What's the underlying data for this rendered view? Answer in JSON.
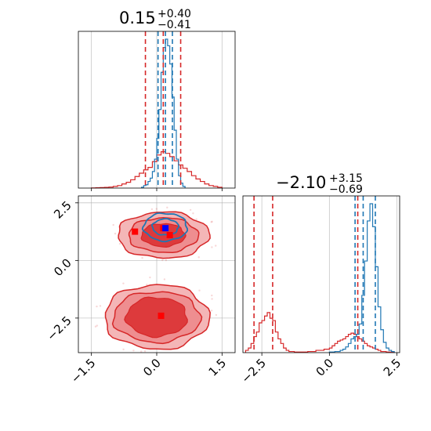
{
  "colors": {
    "red": "#d62728",
    "blue": "#1f77b4",
    "red_fill_light": "#f0a0a2",
    "red_fill_dark": "#d62728",
    "grid": "#b0b0b0"
  },
  "chart_data": [
    {
      "type": "histogram",
      "panel": "top-left",
      "title": {
        "value": "0.15",
        "plus": "+0.40",
        "minus": "−0.41"
      },
      "xlim": [
        -1.8,
        1.8
      ],
      "xticks": [
        -1.5,
        0.0,
        1.5
      ],
      "grid": true,
      "series": [
        {
          "color": "#d62728",
          "quantiles": [
            -0.26,
            0.15,
            0.55
          ],
          "bins": [
            -1.5,
            -1.4,
            -1.3,
            -1.2,
            -1.1,
            -1.0,
            -0.9,
            -0.8,
            -0.7,
            -0.6,
            -0.5,
            -0.4,
            -0.3,
            -0.2,
            -0.1,
            0.0,
            0.1,
            0.2,
            0.3,
            0.4,
            0.5,
            0.6,
            0.7,
            0.8,
            0.9,
            1.0,
            1.1,
            1.2,
            1.3,
            1.4
          ],
          "counts": [
            0.2,
            0.4,
            0.6,
            0.8,
            1.2,
            2,
            3,
            5,
            7,
            10,
            14,
            18,
            22,
            25,
            32,
            40,
            44,
            42,
            38,
            33,
            28,
            24,
            20,
            15,
            11,
            8,
            5,
            3,
            2,
            1
          ]
        },
        {
          "color": "#1f77b4",
          "quantiles": [
            0.03,
            0.2,
            0.36
          ],
          "bins": [
            -0.35,
            -0.3,
            -0.25,
            -0.2,
            -0.15,
            -0.1,
            -0.05,
            0.0,
            0.05,
            0.1,
            0.15,
            0.2,
            0.25,
            0.3,
            0.35,
            0.4,
            0.45,
            0.5,
            0.55,
            0.6
          ],
          "counts": [
            1,
            3,
            4,
            8,
            12,
            20,
            35,
            60,
            95,
            140,
            170,
            180,
            172,
            150,
            110,
            70,
            35,
            15,
            6,
            2
          ]
        }
      ]
    },
    {
      "type": "histogram",
      "panel": "bottom-right",
      "title": {
        "value": "−2.10",
        "plus": "+3.15",
        "minus": "−0.69"
      },
      "xlim": [
        -3.2,
        2.6
      ],
      "xticks": [
        -2.5,
        0.0,
        2.5
      ],
      "grid": true,
      "series": [
        {
          "color": "#d62728",
          "quantiles": [
            -2.79,
            -2.1,
            1.05
          ],
          "bins": [
            -3.1,
            -3.0,
            -2.9,
            -2.8,
            -2.7,
            -2.6,
            -2.5,
            -2.4,
            -2.3,
            -2.2,
            -2.1,
            -2.0,
            -1.9,
            -1.8,
            -1.7,
            -1.6,
            -1.5,
            -1.4,
            -1.3,
            -1.2,
            -1.1,
            -1.0,
            -0.9,
            -0.8,
            -0.7,
            -0.6,
            -0.5,
            -0.4,
            -0.3,
            -0.2,
            -0.1,
            0.0,
            0.1,
            0.2,
            0.3,
            0.4,
            0.5,
            0.6,
            0.7,
            0.8,
            0.9,
            1.0,
            1.1,
            1.2,
            1.3,
            1.4,
            1.5,
            1.6,
            1.7,
            1.8,
            1.9,
            2.0,
            2.1,
            2.2,
            2.3
          ],
          "counts": [
            2,
            4,
            8,
            14,
            18,
            26,
            28,
            32,
            35,
            30,
            28,
            18,
            12,
            8,
            4,
            2,
            1,
            1,
            0.5,
            0.5,
            0.5,
            0.5,
            0.5,
            1,
            1,
            1,
            2,
            2,
            2,
            3,
            3,
            4,
            6,
            8,
            10,
            11,
            12,
            14,
            16,
            17,
            16,
            14,
            12,
            10,
            8,
            6,
            5,
            4,
            3,
            2,
            1,
            1,
            0.5,
            0.5,
            0.5
          ]
        },
        {
          "color": "#1f77b4",
          "quantiles": [
            0.95,
            1.25,
            1.7
          ],
          "bins": [
            0.0,
            0.1,
            0.2,
            0.3,
            0.4,
            0.5,
            0.6,
            0.7,
            0.8,
            0.9,
            1.0,
            1.1,
            1.2,
            1.3,
            1.4,
            1.5,
            1.6,
            1.7,
            1.8,
            1.9,
            2.0,
            2.1,
            2.2,
            2.3
          ],
          "counts": [
            0.5,
            0.5,
            1,
            1,
            2,
            3,
            5,
            8,
            12,
            14,
            16,
            25,
            50,
            80,
            115,
            130,
            110,
            75,
            40,
            20,
            9,
            4,
            2,
            1
          ]
        }
      ]
    },
    {
      "type": "contour",
      "panel": "bottom-left",
      "xlim": [
        -1.8,
        1.8
      ],
      "ylim": [
        -4.0,
        2.8
      ],
      "xticks": [
        -1.5,
        0.0,
        1.5
      ],
      "yticks": [
        -2.5,
        0.0,
        2.5
      ],
      "grid": true,
      "red_blobs": [
        {
          "cx": 0.15,
          "cy": 1.1,
          "rx_outer": 1.05,
          "ry_outer": 1.0,
          "rx_mid": 0.8,
          "ry_mid": 0.75,
          "rx_inner": 0.5,
          "ry_inner": 0.5
        },
        {
          "cx": 0.0,
          "cy": -2.45,
          "rx_outer": 1.2,
          "ry_outer": 1.4,
          "rx_mid": 1.0,
          "ry_mid": 1.1,
          "rx_inner": 0.7,
          "ry_inner": 0.85
        }
      ],
      "blue_blob": {
        "cx": 0.2,
        "cy": 1.45,
        "rx_outer": 0.5,
        "ry_outer": 0.6,
        "rx_inner": 0.3,
        "ry_inner": 0.35
      },
      "red_markers": [
        [
          -0.5,
          1.25
        ],
        [
          0.3,
          1.1
        ],
        [
          0.1,
          -2.4
        ],
        [
          0.15,
          1.4
        ]
      ],
      "blue_markers": [
        [
          0.2,
          1.4
        ]
      ]
    }
  ]
}
